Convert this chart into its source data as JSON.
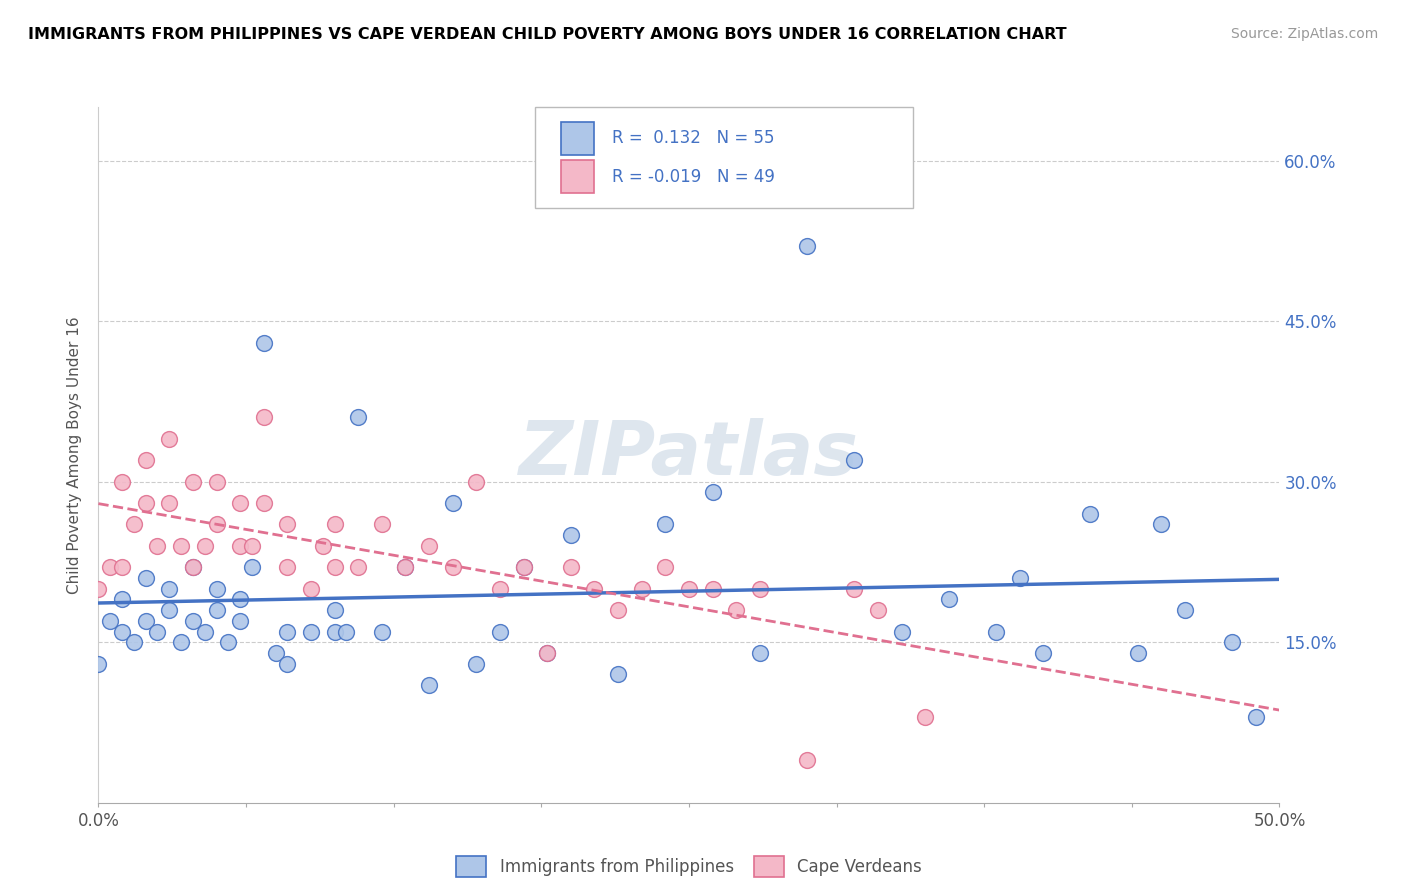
{
  "title": "IMMIGRANTS FROM PHILIPPINES VS CAPE VERDEAN CHILD POVERTY AMONG BOYS UNDER 16 CORRELATION CHART",
  "source": "Source: ZipAtlas.com",
  "ylabel": "Child Poverty Among Boys Under 16",
  "xlim": [
    0.0,
    0.5
  ],
  "ylim": [
    0.0,
    0.65
  ],
  "ytick_labels_right": [
    "15.0%",
    "30.0%",
    "45.0%",
    "60.0%"
  ],
  "ytick_vals": [
    0.15,
    0.3,
    0.45,
    0.6
  ],
  "xtick_vals": [
    0.0,
    0.0625,
    0.125,
    0.1875,
    0.25,
    0.3125,
    0.375,
    0.4375,
    0.5
  ],
  "xtick_labels": [
    "0.0%",
    "",
    "",
    "",
    "",
    "",
    "",
    "",
    "50.0%"
  ],
  "blue_fill": "#aec6e8",
  "blue_edge": "#4472c4",
  "pink_fill": "#f4b8c8",
  "pink_edge": "#e07090",
  "blue_line_color": "#4472c4",
  "pink_line_color": "#e07090",
  "right_axis_color": "#4472c4",
  "R_blue": 0.132,
  "N_blue": 55,
  "R_pink": -0.019,
  "N_pink": 49,
  "watermark": "ZIPatlas",
  "legend_label_blue": "Immigrants from Philippines",
  "legend_label_pink": "Cape Verdeans",
  "blue_scatter_x": [
    0.0,
    0.005,
    0.01,
    0.01,
    0.015,
    0.02,
    0.02,
    0.025,
    0.03,
    0.03,
    0.035,
    0.04,
    0.04,
    0.045,
    0.05,
    0.05,
    0.055,
    0.06,
    0.06,
    0.065,
    0.07,
    0.075,
    0.08,
    0.08,
    0.09,
    0.1,
    0.1,
    0.105,
    0.11,
    0.12,
    0.13,
    0.14,
    0.15,
    0.16,
    0.17,
    0.18,
    0.19,
    0.2,
    0.22,
    0.24,
    0.26,
    0.28,
    0.3,
    0.32,
    0.34,
    0.36,
    0.38,
    0.39,
    0.4,
    0.42,
    0.44,
    0.45,
    0.46,
    0.48,
    0.49
  ],
  "blue_scatter_y": [
    0.13,
    0.17,
    0.16,
    0.19,
    0.15,
    0.17,
    0.21,
    0.16,
    0.18,
    0.2,
    0.15,
    0.17,
    0.22,
    0.16,
    0.18,
    0.2,
    0.15,
    0.17,
    0.19,
    0.22,
    0.43,
    0.14,
    0.13,
    0.16,
    0.16,
    0.16,
    0.18,
    0.16,
    0.36,
    0.16,
    0.22,
    0.11,
    0.28,
    0.13,
    0.16,
    0.22,
    0.14,
    0.25,
    0.12,
    0.26,
    0.29,
    0.14,
    0.52,
    0.32,
    0.16,
    0.19,
    0.16,
    0.21,
    0.14,
    0.27,
    0.14,
    0.26,
    0.18,
    0.15,
    0.08
  ],
  "pink_scatter_x": [
    0.0,
    0.005,
    0.01,
    0.01,
    0.015,
    0.02,
    0.02,
    0.025,
    0.03,
    0.03,
    0.035,
    0.04,
    0.04,
    0.045,
    0.05,
    0.05,
    0.06,
    0.06,
    0.065,
    0.07,
    0.07,
    0.08,
    0.08,
    0.09,
    0.095,
    0.1,
    0.1,
    0.11,
    0.12,
    0.13,
    0.14,
    0.15,
    0.16,
    0.17,
    0.18,
    0.19,
    0.2,
    0.21,
    0.22,
    0.23,
    0.24,
    0.25,
    0.26,
    0.27,
    0.28,
    0.3,
    0.32,
    0.33,
    0.35
  ],
  "pink_scatter_y": [
    0.2,
    0.22,
    0.22,
    0.3,
    0.26,
    0.28,
    0.32,
    0.24,
    0.28,
    0.34,
    0.24,
    0.22,
    0.3,
    0.24,
    0.26,
    0.3,
    0.24,
    0.28,
    0.24,
    0.28,
    0.36,
    0.22,
    0.26,
    0.2,
    0.24,
    0.22,
    0.26,
    0.22,
    0.26,
    0.22,
    0.24,
    0.22,
    0.3,
    0.2,
    0.22,
    0.14,
    0.22,
    0.2,
    0.18,
    0.2,
    0.22,
    0.2,
    0.2,
    0.18,
    0.2,
    0.04,
    0.2,
    0.18,
    0.08
  ]
}
